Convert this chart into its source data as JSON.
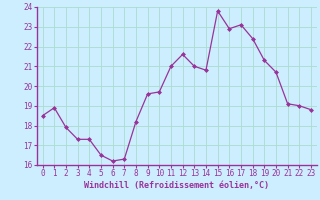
{
  "x": [
    0,
    1,
    2,
    3,
    4,
    5,
    6,
    7,
    8,
    9,
    10,
    11,
    12,
    13,
    14,
    15,
    16,
    17,
    18,
    19,
    20,
    21,
    22,
    23
  ],
  "y": [
    18.5,
    18.9,
    17.9,
    17.3,
    17.3,
    16.5,
    16.2,
    16.3,
    18.2,
    19.6,
    19.7,
    21.0,
    21.6,
    21.0,
    20.8,
    23.8,
    22.9,
    23.1,
    22.4,
    21.3,
    20.7,
    19.1,
    19.0,
    18.8
  ],
  "line_color": "#993399",
  "marker_color": "#993399",
  "bg_color": "#cceeff",
  "grid_color": "#aaddcc",
  "axis_label_color": "#993399",
  "tick_label_color": "#993399",
  "xlabel": "Windchill (Refroidissement éolien,°C)",
  "ylim": [
    16,
    24
  ],
  "xlim": [
    -0.5,
    23.5
  ],
  "yticks": [
    16,
    17,
    18,
    19,
    20,
    21,
    22,
    23,
    24
  ],
  "xticks": [
    0,
    1,
    2,
    3,
    4,
    5,
    6,
    7,
    8,
    9,
    10,
    11,
    12,
    13,
    14,
    15,
    16,
    17,
    18,
    19,
    20,
    21,
    22,
    23
  ],
  "tick_fontsize": 5.5,
  "xlabel_fontsize": 6.0,
  "spine_color": "#993399"
}
